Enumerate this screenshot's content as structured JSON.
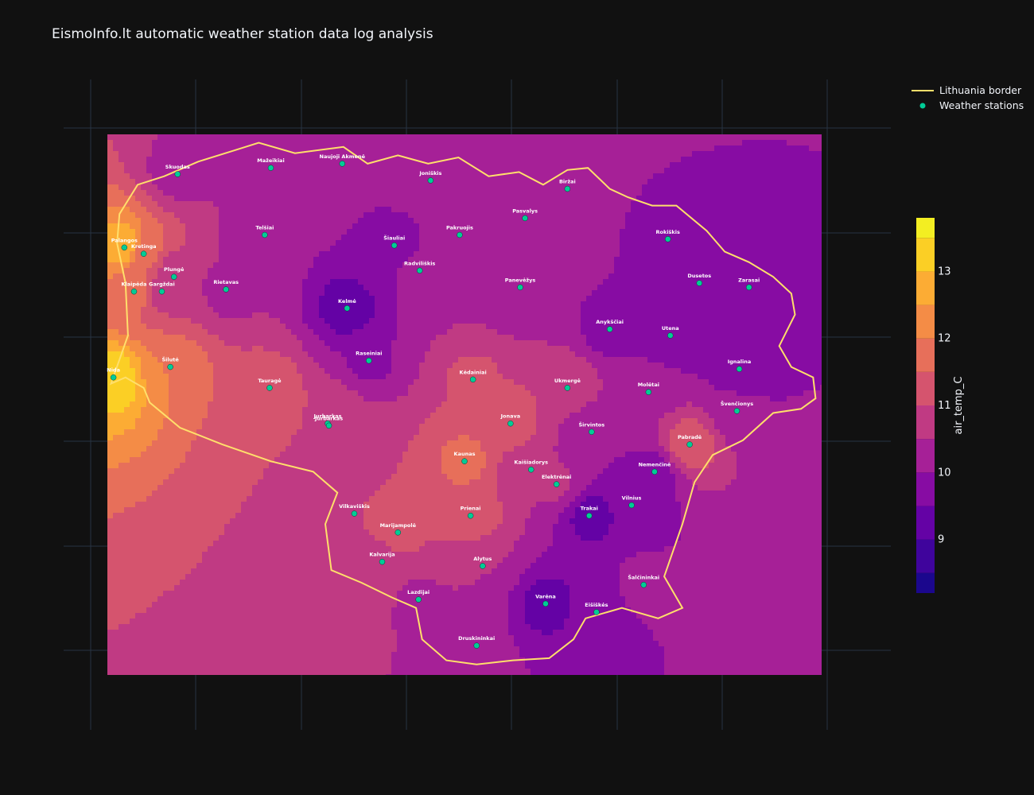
{
  "title": "EismoInfo.lt automatic weather station data log analysis",
  "colors": {
    "background": "#111111",
    "border": "#ffdf6b",
    "station": "#00cc96",
    "grid": "#283442",
    "contour_line": "#3a1a2a"
  },
  "chart_data": {
    "type": "contour",
    "title": "EismoInfo.lt automatic weather station data log analysis",
    "z_label": "air_temp_C",
    "z_range": [
      8.2,
      13.8
    ],
    "z_levels": [
      8.5,
      9,
      9.5,
      10,
      10.5,
      11,
      11.5,
      12,
      12.5,
      13,
      13.5
    ],
    "colorbar_ticks": [
      "9",
      "10",
      "11",
      "12",
      "13"
    ],
    "colorbar_tick_values": [
      9,
      10,
      11,
      12,
      13
    ],
    "colorscale": [
      "#0d0887",
      "#46039f",
      "#7201a8",
      "#9c179e",
      "#bd3786",
      "#d8576b",
      "#ed7953",
      "#fb9f3a",
      "#fdca26",
      "#f0f921"
    ],
    "legend": [
      {
        "name": "Lithuania border",
        "kind": "line"
      },
      {
        "name": "Weather stations",
        "kind": "marker"
      }
    ],
    "domain": {
      "lon": [
        20.95,
        26.85
      ],
      "lat": [
        53.88,
        56.46
      ]
    },
    "background_temp": 10.5,
    "border": [
      [
        21.03,
        55.94
      ],
      [
        21.05,
        56.08
      ],
      [
        21.2,
        56.22
      ],
      [
        21.42,
        56.26
      ],
      [
        21.7,
        56.33
      ],
      [
        21.98,
        56.38
      ],
      [
        22.2,
        56.42
      ],
      [
        22.5,
        56.37
      ],
      [
        22.9,
        56.4
      ],
      [
        23.1,
        56.32
      ],
      [
        23.35,
        56.36
      ],
      [
        23.6,
        56.32
      ],
      [
        23.85,
        56.35
      ],
      [
        24.1,
        56.26
      ],
      [
        24.35,
        56.28
      ],
      [
        24.55,
        56.22
      ],
      [
        24.75,
        56.29
      ],
      [
        24.92,
        56.3
      ],
      [
        25.1,
        56.2
      ],
      [
        25.25,
        56.16
      ],
      [
        25.45,
        56.12
      ],
      [
        25.65,
        56.12
      ],
      [
        25.9,
        56.0
      ],
      [
        26.05,
        55.9
      ],
      [
        26.25,
        55.85
      ],
      [
        26.45,
        55.78
      ],
      [
        26.6,
        55.7
      ],
      [
        26.63,
        55.6
      ],
      [
        26.56,
        55.52
      ],
      [
        26.5,
        55.45
      ],
      [
        26.6,
        55.35
      ],
      [
        26.78,
        55.3
      ],
      [
        26.8,
        55.2
      ],
      [
        26.68,
        55.15
      ],
      [
        26.45,
        55.13
      ],
      [
        26.2,
        55.0
      ],
      [
        25.95,
        54.93
      ],
      [
        25.8,
        54.8
      ],
      [
        25.7,
        54.6
      ],
      [
        25.55,
        54.35
      ],
      [
        25.7,
        54.2
      ],
      [
        25.5,
        54.15
      ],
      [
        25.2,
        54.2
      ],
      [
        24.9,
        54.15
      ],
      [
        24.8,
        54.05
      ],
      [
        24.6,
        53.96
      ],
      [
        24.3,
        53.95
      ],
      [
        24.0,
        53.93
      ],
      [
        23.75,
        53.95
      ],
      [
        23.55,
        54.05
      ],
      [
        23.5,
        54.2
      ],
      [
        23.3,
        54.25
      ],
      [
        23.05,
        54.32
      ],
      [
        22.8,
        54.38
      ],
      [
        22.75,
        54.6
      ],
      [
        22.85,
        54.75
      ],
      [
        22.65,
        54.85
      ],
      [
        22.3,
        54.9
      ],
      [
        21.9,
        54.98
      ],
      [
        21.55,
        55.06
      ],
      [
        21.3,
        55.18
      ],
      [
        21.25,
        55.25
      ],
      [
        21.1,
        55.3
      ],
      [
        20.98,
        55.27
      ],
      [
        21.12,
        55.5
      ],
      [
        21.1,
        55.75
      ],
      [
        21.03,
        55.94
      ]
    ],
    "stations": [
      {
        "name": "Palangos",
        "lon": 21.09,
        "lat": 55.92,
        "t": 13.0
      },
      {
        "name": "Kretinga",
        "lon": 21.25,
        "lat": 55.89,
        "t": 11.6
      },
      {
        "name": "Plungė",
        "lon": 21.5,
        "lat": 55.78,
        "t": 10.5
      },
      {
        "name": "Skuodas",
        "lon": 21.53,
        "lat": 56.27,
        "t": 10.3
      },
      {
        "name": "Mažeikiai",
        "lon": 22.3,
        "lat": 56.3,
        "t": 10.2
      },
      {
        "name": "Telšiai",
        "lon": 22.25,
        "lat": 55.98,
        "t": 10.0
      },
      {
        "name": "Rietavas",
        "lon": 21.93,
        "lat": 55.72,
        "t": 10.3
      },
      {
        "name": "Klaipėda",
        "lon": 21.17,
        "lat": 55.71,
        "t": 11.8
      },
      {
        "name": "Šilutė",
        "lon": 21.47,
        "lat": 55.35,
        "t": 12.0
      },
      {
        "name": "Nida",
        "lon": 21.0,
        "lat": 55.3,
        "t": 13.4
      },
      {
        "name": "Jurbarkas",
        "lon": 22.77,
        "lat": 55.08,
        "t": 11.0
      },
      {
        "name": "Šiauliai",
        "lon": 23.32,
        "lat": 55.93,
        "t": 9.6
      },
      {
        "name": "Radviliškis",
        "lon": 23.53,
        "lat": 55.81,
        "t": 10.2
      },
      {
        "name": "Kelmė",
        "lon": 22.93,
        "lat": 55.63,
        "t": 9.2
      },
      {
        "name": "Raseiniai",
        "lon": 23.11,
        "lat": 55.38,
        "t": 9.9
      },
      {
        "name": "Tauragė",
        "lon": 22.29,
        "lat": 55.25,
        "t": 11.3
      },
      {
        "name": "Joniškis",
        "lon": 23.62,
        "lat": 56.24,
        "t": 10.5
      },
      {
        "name": "Pakruojis",
        "lon": 23.86,
        "lat": 55.98,
        "t": 10.4
      },
      {
        "name": "Pasvalys",
        "lon": 24.4,
        "lat": 56.06,
        "t": 10.5
      },
      {
        "name": "Biržai",
        "lon": 24.75,
        "lat": 56.2,
        "t": 10.3
      },
      {
        "name": "Panevėžys",
        "lon": 24.36,
        "lat": 55.73,
        "t": 10.0
      },
      {
        "name": "Kėdainiai",
        "lon": 23.97,
        "lat": 55.29,
        "t": 11.1
      },
      {
        "name": "Kaunas",
        "lon": 23.9,
        "lat": 54.9,
        "t": 11.7
      },
      {
        "name": "Jonava",
        "lon": 24.28,
        "lat": 55.08,
        "t": 11.4
      },
      {
        "name": "Ukmergė",
        "lon": 24.75,
        "lat": 55.25,
        "t": 11.0
      },
      {
        "name": "Anykščiai",
        "lon": 25.1,
        "lat": 55.53,
        "t": 9.8
      },
      {
        "name": "Utena",
        "lon": 25.6,
        "lat": 55.5,
        "t": 9.6
      },
      {
        "name": "Rokiškis",
        "lon": 25.58,
        "lat": 55.96,
        "t": 9.8
      },
      {
        "name": "Zarasai",
        "lon": 26.25,
        "lat": 55.73,
        "t": 9.5
      },
      {
        "name": "Ignalina",
        "lon": 26.17,
        "lat": 55.34,
        "t": 9.7
      },
      {
        "name": "Molėtai",
        "lon": 25.42,
        "lat": 55.23,
        "t": 10.3
      },
      {
        "name": "Širvintos",
        "lon": 24.95,
        "lat": 55.04,
        "t": 10.0
      },
      {
        "name": "Vilnius",
        "lon": 25.28,
        "lat": 54.69,
        "t": 9.5
      },
      {
        "name": "Trakai",
        "lon": 24.93,
        "lat": 54.64,
        "t": 9.3
      },
      {
        "name": "Elektrėnai",
        "lon": 24.66,
        "lat": 54.79,
        "t": 10.6
      },
      {
        "name": "Prienai",
        "lon": 23.95,
        "lat": 54.64,
        "t": 11.4
      },
      {
        "name": "Alytus",
        "lon": 24.05,
        "lat": 54.4,
        "t": 10.5
      },
      {
        "name": "Marijampolė",
        "lon": 23.35,
        "lat": 54.56,
        "t": 11.2
      },
      {
        "name": "Kalvarija",
        "lon": 23.22,
        "lat": 54.42,
        "t": 10.8
      },
      {
        "name": "Vilkaviškis",
        "lon": 22.99,
        "lat": 54.65,
        "t": 11.0
      },
      {
        "name": "Lazdijai",
        "lon": 23.52,
        "lat": 54.24,
        "t": 10.4
      },
      {
        "name": "Druskininkai",
        "lon": 24.0,
        "lat": 54.02,
        "t": 10.2
      },
      {
        "name": "Varėna",
        "lon": 24.57,
        "lat": 54.22,
        "t": 9.3
      },
      {
        "name": "Šalčininkai",
        "lon": 25.38,
        "lat": 54.31,
        "t": 10.2
      },
      {
        "name": "Eišiškės",
        "lon": 24.99,
        "lat": 54.18,
        "t": 9.6
      },
      {
        "name": "Švenčionys",
        "lon": 26.15,
        "lat": 55.14,
        "t": 10.1
      },
      {
        "name": "Pabradė",
        "lon": 25.76,
        "lat": 54.98,
        "t": 11.5
      },
      {
        "name": "Nemenčinė",
        "lon": 25.47,
        "lat": 54.85,
        "t": 9.8
      },
      {
        "name": "Kaišiadorys",
        "lon": 24.45,
        "lat": 54.86,
        "t": 10.5
      },
      {
        "name": "Jurbarkas",
        "lon": 22.78,
        "lat": 55.07,
        "t": 11.0
      },
      {
        "name": "Gargždai",
        "lon": 21.4,
        "lat": 55.71,
        "t": 10.8
      },
      {
        "name": "Naujoji Akmenė",
        "lon": 22.89,
        "lat": 56.32,
        "t": 10.4
      },
      {
        "name": "Dusetos",
        "lon": 25.84,
        "lat": 55.75,
        "t": 9.9
      }
    ]
  }
}
